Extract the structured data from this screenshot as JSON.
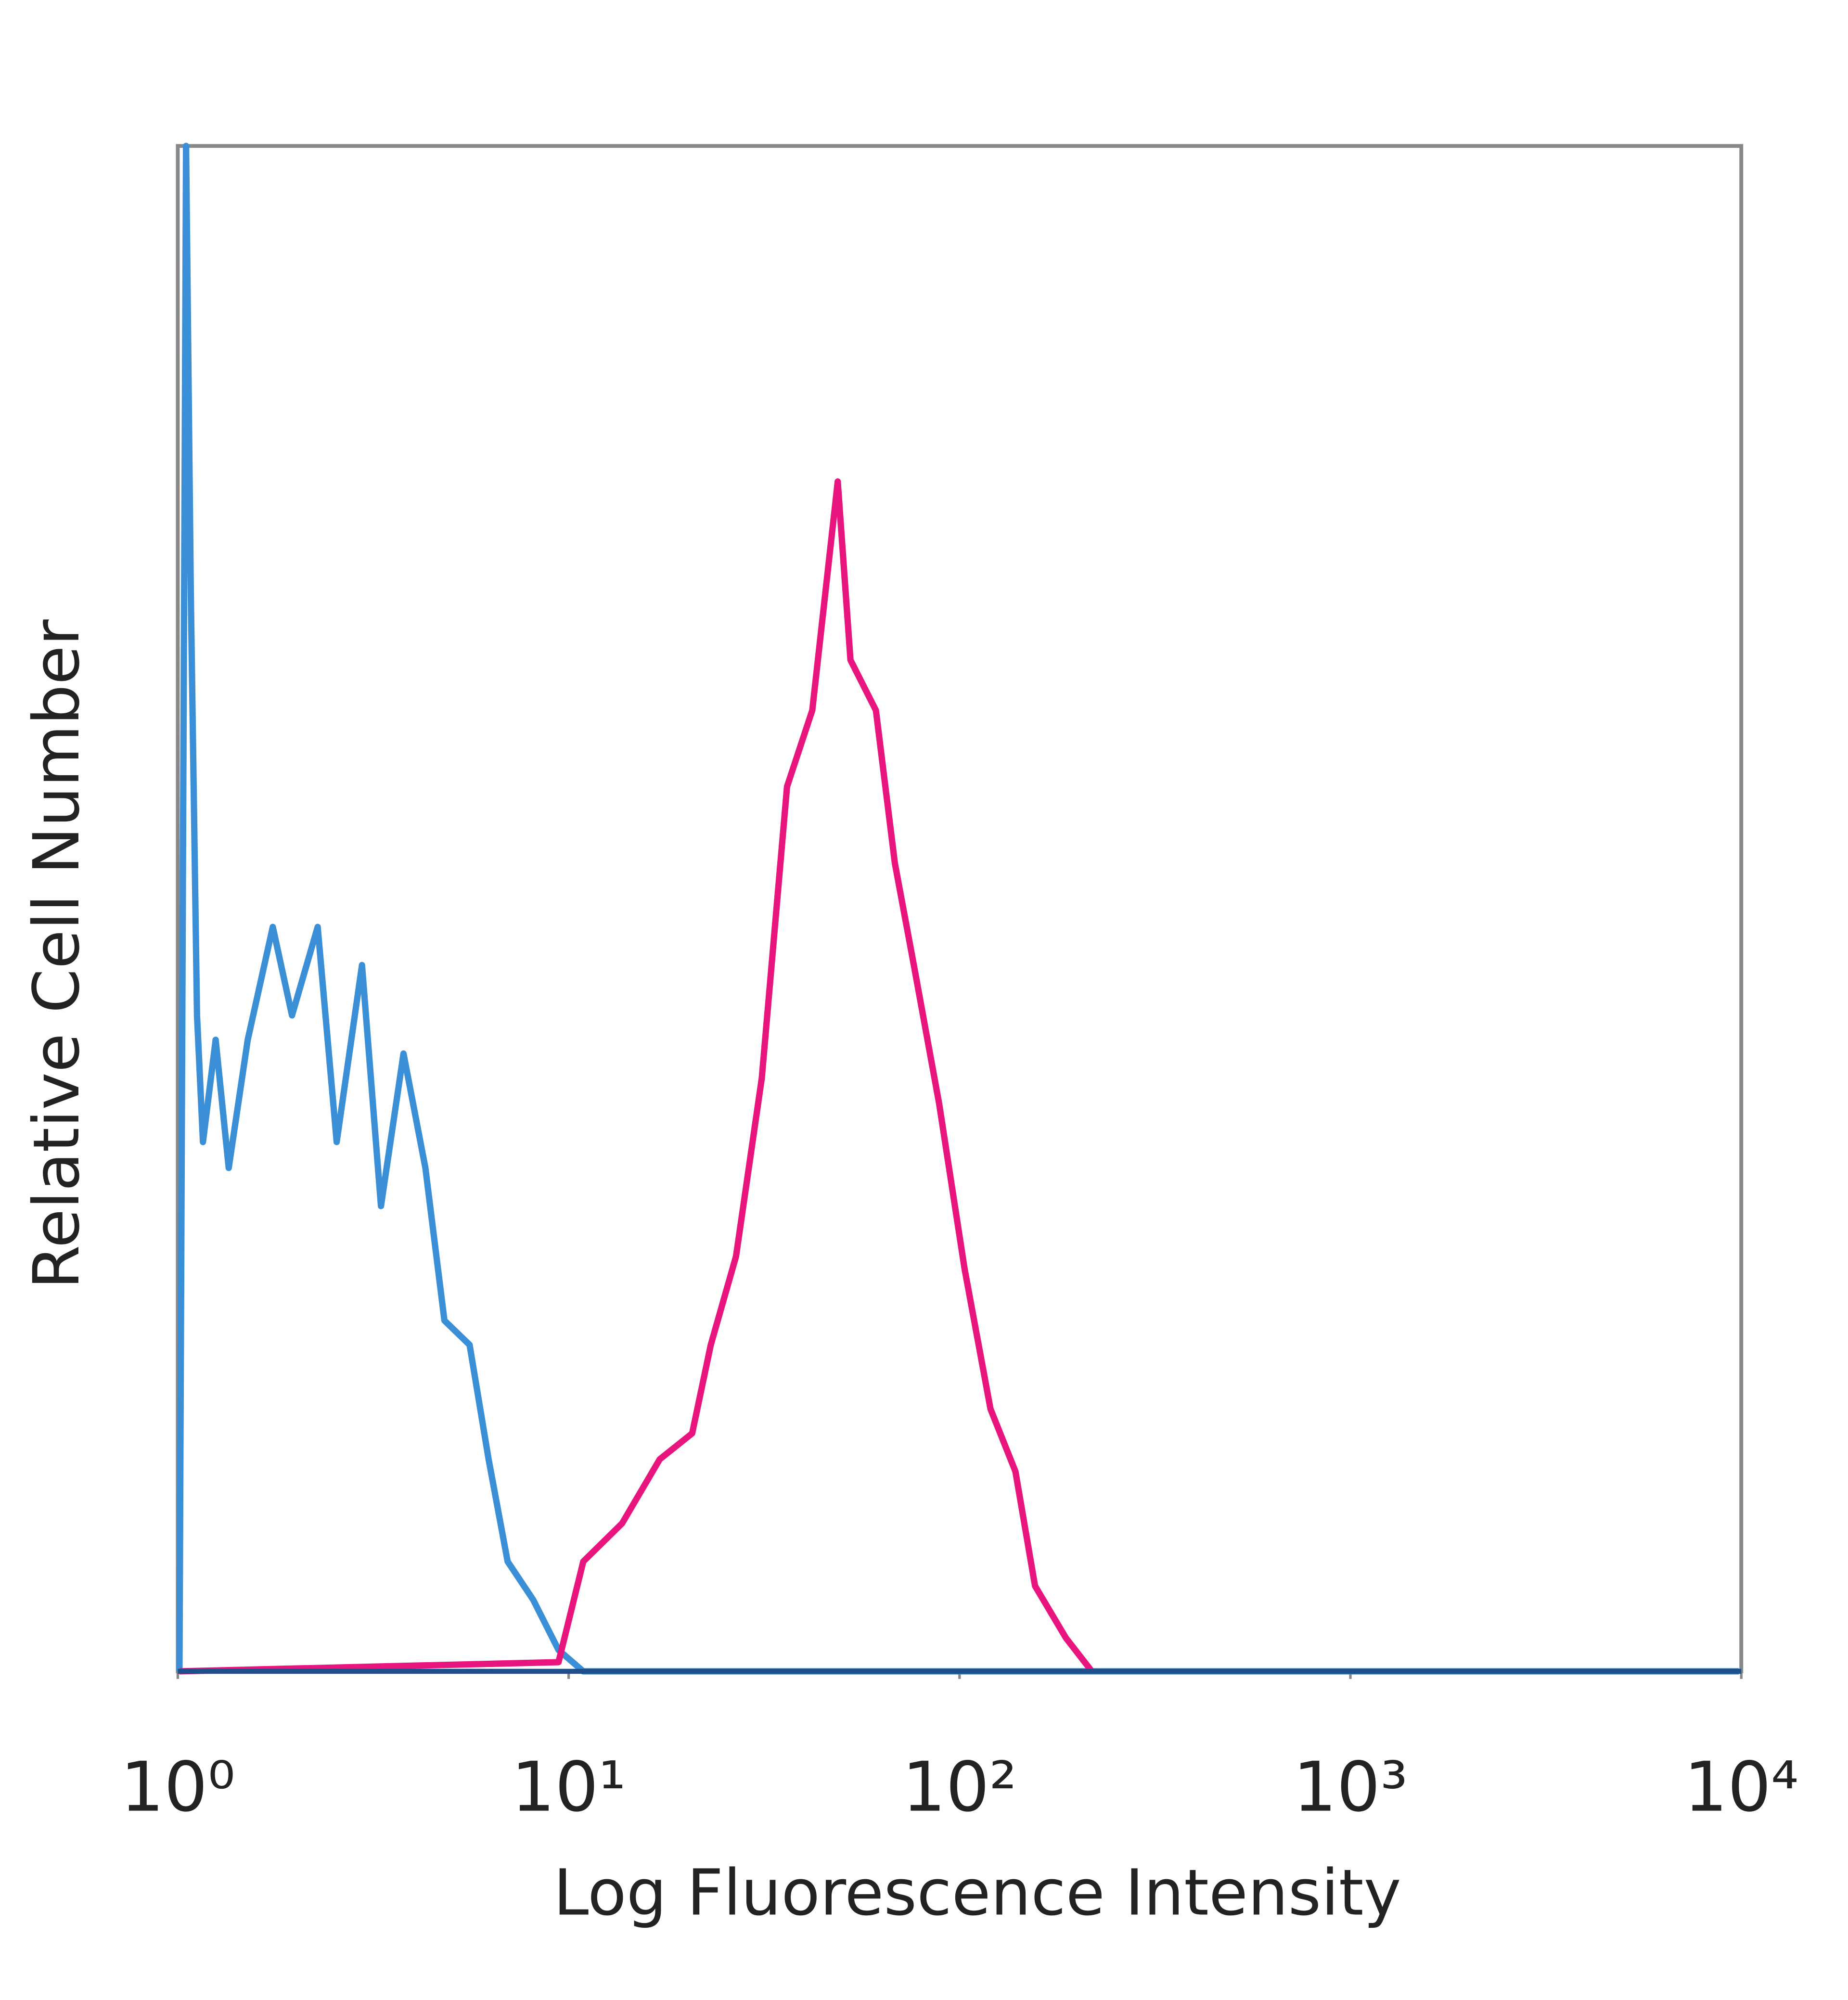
{
  "chart_data": {
    "type": "line",
    "xlabel": "Log Fluorescence Intensity",
    "ylabel": "Relative Cell Number",
    "xscale": "log",
    "xlim": [
      1,
      10000
    ],
    "ylim": [
      0,
      100
    ],
    "grid": false,
    "xticks": [
      {
        "value": 1,
        "label": "10⁰"
      },
      {
        "value": 10,
        "label": "10¹"
      },
      {
        "value": 100,
        "label": "10²"
      },
      {
        "value": 1000,
        "label": "10³"
      },
      {
        "value": 10000,
        "label": "10⁴"
      }
    ],
    "series": [
      {
        "color": "#3a8fd6",
        "x": [
          1.01,
          1.05,
          1.08,
          1.12,
          1.16,
          1.25,
          1.35,
          1.51,
          1.75,
          1.96,
          2.28,
          2.55,
          2.96,
          3.31,
          3.78,
          4.3,
          4.81,
          5.58,
          6.24,
          6.98,
          8.11,
          9.42,
          10.9,
          9860
        ],
        "values": [
          0,
          100,
          70.5,
          43,
          34.7,
          41.4,
          33,
          41.4,
          48.8,
          43,
          48.8,
          34.7,
          46.3,
          30.5,
          40.5,
          33,
          23,
          21.4,
          13.9,
          7.2,
          4.7,
          1.4,
          0,
          0
        ]
      },
      {
        "color": "#e8157f",
        "x": [
          1.01,
          9.42,
          10.9,
          13.7,
          17.1,
          20.7,
          23.1,
          26.8,
          31.2,
          36.2,
          42,
          48.8,
          52.6,
          61.1,
          68.3,
          76.4,
          88.7,
          103,
          120,
          139,
          156,
          187,
          218
        ],
        "values": [
          0,
          0.6,
          7.2,
          9.7,
          13.9,
          15.6,
          21.4,
          27.2,
          38.9,
          58,
          63,
          78,
          66.3,
          63,
          53,
          46.3,
          37.2,
          26.4,
          17.2,
          13.1,
          5.6,
          2.2,
          0
        ]
      }
    ]
  }
}
